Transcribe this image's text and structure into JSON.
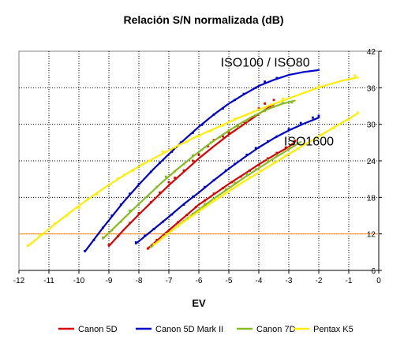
{
  "chart_data": {
    "type": "line",
    "title": "Relación S/N normalizada (dB)",
    "xlabel": "EV",
    "ylabel": "",
    "xlim": [
      -12,
      0
    ],
    "ylim": [
      6,
      42
    ],
    "x_ticks": [
      -12,
      -11,
      -10,
      -9,
      -8,
      -7,
      -6,
      -5,
      -4,
      -3,
      -2,
      -1,
      0
    ],
    "y_ticks": [
      6,
      12,
      18,
      24,
      30,
      36,
      42
    ],
    "y_axis_side": "right",
    "grid": true,
    "legend_position": "bottom",
    "colors": {
      "plot_border": "#808080",
      "grid": "#000000",
      "reference_line": "#ff9933"
    },
    "reference_line": {
      "y": 12
    },
    "annotations": [
      {
        "text": "ISO100 / ISO80",
        "x": -2.3,
        "y": 39.5
      },
      {
        "text": "ISO1600",
        "x": -1.5,
        "y": 26.5
      }
    ],
    "series": [
      {
        "name": "Canon 5D",
        "color": "#dd0000",
        "curves": [
          [
            [
              -9.0,
              10.0
            ],
            [
              -8.5,
              12.7
            ],
            [
              -8.0,
              15.2
            ],
            [
              -7.5,
              17.6
            ],
            [
              -7.0,
              20.0
            ],
            [
              -6.5,
              22.2
            ],
            [
              -6.0,
              24.4
            ],
            [
              -5.5,
              26.4
            ],
            [
              -5.0,
              28.3
            ],
            [
              -4.5,
              30.0
            ],
            [
              -4.0,
              31.7
            ],
            [
              -3.5,
              33.3
            ]
          ],
          [
            [
              -7.7,
              9.6
            ],
            [
              -7.0,
              12.6
            ],
            [
              -6.5,
              14.7
            ],
            [
              -6.0,
              16.8
            ],
            [
              -5.5,
              18.5
            ],
            [
              -5.0,
              20.2
            ],
            [
              -4.5,
              21.8
            ],
            [
              -4.0,
              23.4
            ],
            [
              -3.5,
              24.9
            ],
            [
              -3.0,
              26.3
            ],
            [
              -2.8,
              27.1
            ]
          ]
        ],
        "points": [
          [
            -9.0,
            10.2
          ],
          [
            -8.7,
            11.6
          ],
          [
            -8.3,
            13.8
          ],
          [
            -8.0,
            15.4
          ],
          [
            -7.6,
            17.2
          ],
          [
            -7.3,
            18.8
          ],
          [
            -7.0,
            20.5
          ],
          [
            -6.8,
            21.2
          ],
          [
            -6.5,
            22.4
          ],
          [
            -6.2,
            24.0
          ],
          [
            -6.0,
            25.0
          ],
          [
            -5.7,
            26.4
          ],
          [
            -5.5,
            27.4
          ],
          [
            -5.2,
            28.0
          ],
          [
            -5.0,
            28.6
          ],
          [
            -4.7,
            29.7
          ],
          [
            -4.5,
            30.4
          ],
          [
            -4.2,
            31.2
          ],
          [
            -4.0,
            32.6
          ],
          [
            -3.8,
            33.4
          ],
          [
            -3.5,
            34.0
          ],
          [
            -7.7,
            9.6
          ],
          [
            -7.4,
            11.0
          ],
          [
            -7.0,
            12.5
          ],
          [
            -6.7,
            13.9
          ],
          [
            -6.4,
            15.1
          ],
          [
            -6.1,
            16.4
          ],
          [
            -5.8,
            17.5
          ],
          [
            -5.5,
            18.6
          ],
          [
            -5.2,
            19.5
          ],
          [
            -4.9,
            20.5
          ],
          [
            -4.6,
            21.4
          ],
          [
            -4.3,
            22.4
          ],
          [
            -4.0,
            23.3
          ],
          [
            -3.7,
            24.4
          ],
          [
            -3.4,
            25.3
          ],
          [
            -3.1,
            26.2
          ],
          [
            -2.8,
            27.3
          ]
        ]
      },
      {
        "name": "Canon 5D Mark II",
        "color": "#0000cc",
        "curves": [
          [
            [
              -9.8,
              9.1
            ],
            [
              -9.2,
              13.0
            ],
            [
              -8.5,
              17.3
            ],
            [
              -8.0,
              20.1
            ],
            [
              -7.5,
              22.7
            ],
            [
              -7.0,
              25.1
            ],
            [
              -6.5,
              27.4
            ],
            [
              -6.0,
              29.6
            ],
            [
              -5.5,
              31.6
            ],
            [
              -5.0,
              33.4
            ],
            [
              -4.5,
              34.9
            ],
            [
              -4.0,
              36.3
            ],
            [
              -3.5,
              37.3
            ],
            [
              -3.0,
              38.1
            ],
            [
              -2.5,
              38.6
            ],
            [
              -2.0,
              38.9
            ]
          ],
          [
            [
              -8.1,
              10.4
            ],
            [
              -7.5,
              12.8
            ],
            [
              -7.0,
              14.8
            ],
            [
              -6.5,
              16.9
            ],
            [
              -6.0,
              18.8
            ],
            [
              -5.5,
              20.8
            ],
            [
              -5.0,
              22.7
            ],
            [
              -4.5,
              24.5
            ],
            [
              -4.0,
              26.2
            ],
            [
              -3.5,
              27.7
            ],
            [
              -3.0,
              29.0
            ],
            [
              -2.5,
              30.1
            ],
            [
              -2.0,
              31.1
            ]
          ]
        ],
        "points": [
          [
            -9.8,
            9.2
          ],
          [
            -9.5,
            11.0
          ],
          [
            -9.2,
            13.0
          ],
          [
            -8.9,
            15.0
          ],
          [
            -8.6,
            16.8
          ],
          [
            -8.3,
            18.6
          ],
          [
            -8.0,
            20.2
          ],
          [
            -7.6,
            22.2
          ],
          [
            -7.3,
            23.7
          ],
          [
            -6.9,
            25.5
          ],
          [
            -6.6,
            27.0
          ],
          [
            -6.2,
            28.6
          ],
          [
            -5.9,
            29.9
          ],
          [
            -5.5,
            31.6
          ],
          [
            -5.2,
            32.6
          ],
          [
            -4.8,
            34.0
          ],
          [
            -4.5,
            35.0
          ],
          [
            -4.1,
            36.0
          ],
          [
            -3.8,
            37.0
          ],
          [
            -3.4,
            37.6
          ],
          [
            -8.1,
            10.6
          ],
          [
            -7.8,
            11.7
          ],
          [
            -7.5,
            12.8
          ],
          [
            -7.2,
            14.0
          ],
          [
            -6.9,
            15.2
          ],
          [
            -6.5,
            16.8
          ],
          [
            -6.2,
            18.1
          ],
          [
            -5.8,
            19.7
          ],
          [
            -5.5,
            20.8
          ],
          [
            -5.1,
            22.4
          ],
          [
            -4.8,
            23.5
          ],
          [
            -4.4,
            25.0
          ],
          [
            -4.1,
            26.1
          ],
          [
            -3.7,
            27.2
          ],
          [
            -3.4,
            28.0
          ],
          [
            -3.0,
            29.2
          ],
          [
            -2.6,
            30.2
          ],
          [
            -2.2,
            31.1
          ],
          [
            -2.0,
            31.4
          ]
        ]
      },
      {
        "name": "Canon 7D",
        "color": "#88bb22",
        "curves": [
          [
            [
              -9.2,
              11.2
            ],
            [
              -8.7,
              13.6
            ],
            [
              -8.2,
              16.0
            ],
            [
              -7.7,
              18.3
            ],
            [
              -7.2,
              20.6
            ],
            [
              -6.7,
              22.7
            ],
            [
              -6.2,
              24.7
            ],
            [
              -5.7,
              26.6
            ],
            [
              -5.2,
              28.3
            ],
            [
              -4.7,
              29.9
            ],
            [
              -4.2,
              31.3
            ],
            [
              -3.7,
              32.5
            ],
            [
              -3.2,
              33.4
            ],
            [
              -2.8,
              33.9
            ]
          ],
          [
            [
              -7.6,
              9.8
            ],
            [
              -7.0,
              12.2
            ],
            [
              -6.5,
              14.1
            ],
            [
              -6.0,
              16.0
            ],
            [
              -5.5,
              17.8
            ],
            [
              -5.0,
              19.5
            ],
            [
              -4.5,
              21.2
            ],
            [
              -4.0,
              22.8
            ],
            [
              -3.5,
              24.4
            ],
            [
              -3.0,
              25.9
            ],
            [
              -2.6,
              27.1
            ]
          ]
        ],
        "points": [
          [
            -9.2,
            11.4
          ],
          [
            -8.9,
            12.6
          ],
          [
            -8.6,
            14.0
          ],
          [
            -8.3,
            15.8
          ],
          [
            -8.0,
            17.0
          ],
          [
            -7.7,
            18.2
          ],
          [
            -7.4,
            19.7
          ],
          [
            -7.1,
            21.4
          ],
          [
            -6.8,
            22.3
          ],
          [
            -6.5,
            23.5
          ],
          [
            -6.2,
            24.9
          ],
          [
            -5.9,
            25.8
          ],
          [
            -5.6,
            27.0
          ],
          [
            -5.3,
            27.9
          ],
          [
            -5.0,
            29.0
          ],
          [
            -4.7,
            29.6
          ],
          [
            -4.4,
            30.6
          ],
          [
            -4.1,
            31.5
          ],
          [
            -3.8,
            32.2
          ],
          [
            -3.5,
            32.9
          ],
          [
            -3.2,
            33.5
          ],
          [
            -2.9,
            33.6
          ],
          [
            -7.6,
            9.9
          ],
          [
            -7.2,
            11.5
          ],
          [
            -6.9,
            12.6
          ],
          [
            -6.5,
            14.1
          ],
          [
            -6.2,
            15.3
          ],
          [
            -5.8,
            16.9
          ],
          [
            -5.5,
            17.8
          ],
          [
            -5.1,
            19.3
          ],
          [
            -4.8,
            20.4
          ],
          [
            -4.4,
            21.8
          ],
          [
            -4.1,
            22.6
          ],
          [
            -3.7,
            24.1
          ],
          [
            -3.4,
            24.9
          ],
          [
            -3.0,
            26.1
          ]
        ]
      },
      {
        "name": "Pentax K5",
        "color": "#ffee00",
        "curves": [
          [
            [
              -11.7,
              10.0
            ],
            [
              -11.2,
              12.0
            ],
            [
              -10.7,
              14.0
            ],
            [
              -10.2,
              15.9
            ],
            [
              -9.7,
              17.7
            ],
            [
              -9.2,
              19.4
            ],
            [
              -8.7,
              21.0
            ],
            [
              -8.2,
              22.5
            ],
            [
              -7.7,
              23.9
            ],
            [
              -7.2,
              25.2
            ],
            [
              -6.7,
              26.5
            ],
            [
              -6.2,
              27.7
            ],
            [
              -5.7,
              28.8
            ],
            [
              -5.2,
              29.9
            ],
            [
              -4.7,
              31.0
            ],
            [
              -4.2,
              32.0
            ],
            [
              -3.7,
              33.0
            ],
            [
              -3.2,
              33.9
            ],
            [
              -2.7,
              34.8
            ],
            [
              -2.2,
              35.7
            ],
            [
              -1.7,
              36.5
            ],
            [
              -1.2,
              37.2
            ],
            [
              -0.7,
              37.7
            ]
          ],
          [
            [
              -7.5,
              10.2
            ],
            [
              -7.0,
              12.2
            ],
            [
              -6.5,
              14.0
            ],
            [
              -6.0,
              15.7
            ],
            [
              -5.5,
              17.4
            ],
            [
              -5.0,
              19.0
            ],
            [
              -4.5,
              20.6
            ],
            [
              -4.0,
              22.1
            ],
            [
              -3.5,
              23.6
            ],
            [
              -3.0,
              25.1
            ],
            [
              -2.5,
              26.6
            ],
            [
              -2.0,
              28.0
            ],
            [
              -1.5,
              29.5
            ],
            [
              -1.0,
              30.9
            ],
            [
              -0.7,
              31.8
            ]
          ]
        ],
        "points": [
          [
            -11.7,
            10.1
          ],
          [
            -11.3,
            11.8
          ],
          [
            -10.8,
            13.7
          ],
          [
            -10.4,
            15.0
          ],
          [
            -10.0,
            16.3
          ],
          [
            -9.7,
            17.7
          ],
          [
            -9.4,
            18.5
          ],
          [
            -9.0,
            20.0
          ],
          [
            -8.7,
            21.1
          ],
          [
            -8.5,
            21.7
          ],
          [
            -8.2,
            22.4
          ],
          [
            -7.9,
            23.4
          ],
          [
            -7.6,
            24.0
          ],
          [
            -7.2,
            25.5
          ],
          [
            -6.8,
            26.2
          ],
          [
            -6.4,
            27.1
          ],
          [
            -6.0,
            28.0
          ],
          [
            -5.6,
            28.9
          ],
          [
            -5.2,
            29.8
          ],
          [
            -4.8,
            30.9
          ],
          [
            -4.4,
            31.6
          ],
          [
            -4.0,
            32.4
          ],
          [
            -3.6,
            33.2
          ],
          [
            -3.2,
            34.2
          ],
          [
            -2.0,
            36.3
          ],
          [
            -0.8,
            38.0
          ],
          [
            -7.5,
            10.3
          ],
          [
            -7.1,
            11.9
          ],
          [
            -6.7,
            13.3
          ],
          [
            -6.3,
            14.8
          ],
          [
            -5.9,
            16.1
          ],
          [
            -5.5,
            17.5
          ],
          [
            -5.1,
            18.7
          ],
          [
            -4.7,
            20.0
          ],
          [
            -4.3,
            21.3
          ],
          [
            -3.9,
            22.4
          ],
          [
            -3.5,
            23.7
          ],
          [
            -3.1,
            24.9
          ],
          [
            -2.7,
            26.0
          ],
          [
            -2.3,
            27.1
          ],
          [
            -1.9,
            28.3
          ],
          [
            -1.5,
            29.4
          ],
          [
            -1.0,
            30.8
          ],
          [
            -0.7,
            31.9
          ]
        ]
      }
    ]
  }
}
